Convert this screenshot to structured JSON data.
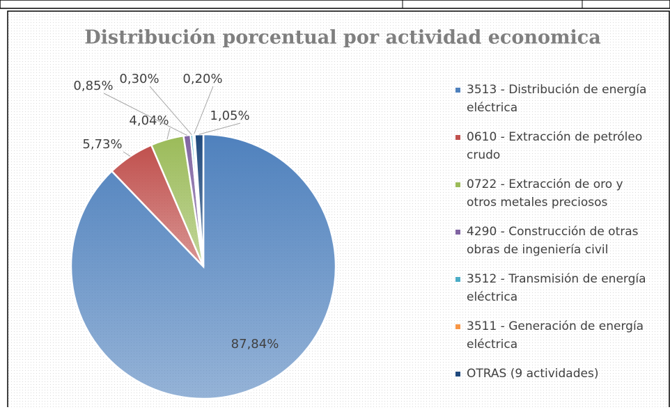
{
  "chart_data": {
    "type": "pie",
    "title": "Distribución porcentual por actividad economica",
    "categories": [
      "3513 - Distribución de energía eléctrica",
      "0610 - Extracción de petróleo crudo",
      "0722 - Extracción de oro y otros metales preciosos",
      "4290 - Construcción de otras obras de ingeniería civil",
      "3512 - Transmisión de energía eléctrica",
      "3511 - Generación de energía eléctrica",
      "OTRAS (9 actividades)"
    ],
    "values": [
      87.84,
      5.73,
      4.04,
      0.85,
      0.3,
      0.2,
      1.05
    ],
    "value_labels": [
      "87,84%",
      "5,73%",
      "4,04%",
      "0,85%",
      "0,30%",
      "0,20%",
      "1,05%"
    ],
    "colors": [
      "#4f81bd",
      "#c0504d",
      "#9bbb59",
      "#8064a2",
      "#4bacc6",
      "#f79646",
      "#1f497d"
    ],
    "legend": "right"
  }
}
